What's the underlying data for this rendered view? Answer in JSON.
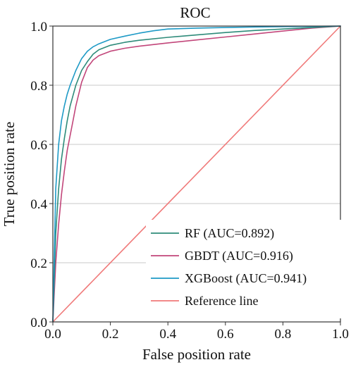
{
  "chart_data": {
    "type": "line",
    "title": "ROC",
    "xlabel": "False position rate",
    "ylabel": "True position rate",
    "xlim": [
      0.0,
      1.0
    ],
    "ylim": [
      0.0,
      1.0
    ],
    "xticks": [
      "0.0",
      "0.2",
      "0.4",
      "0.6",
      "0.8",
      "1.0"
    ],
    "yticks": [
      "0.0",
      "0.2",
      "0.4",
      "0.6",
      "0.8",
      "1.0"
    ],
    "grid": "horizontal",
    "legend_position": "bottom-right",
    "series": [
      {
        "name": "RF (AUC=0.892)",
        "color": "#2e8b7a",
        "x": [
          0.0,
          0.01,
          0.02,
          0.03,
          0.04,
          0.05,
          0.06,
          0.08,
          0.1,
          0.12,
          0.14,
          0.16,
          0.2,
          0.25,
          0.3,
          0.4,
          0.5,
          0.6,
          0.7,
          0.8,
          0.9,
          1.0
        ],
        "y": [
          0.0,
          0.3,
          0.45,
          0.55,
          0.62,
          0.68,
          0.73,
          0.8,
          0.85,
          0.88,
          0.905,
          0.92,
          0.935,
          0.945,
          0.952,
          0.962,
          0.97,
          0.978,
          0.985,
          0.99,
          0.995,
          1.0
        ]
      },
      {
        "name": "GBDT (AUC=0.916)",
        "color": "#c2467a",
        "x": [
          0.0,
          0.01,
          0.02,
          0.03,
          0.04,
          0.05,
          0.06,
          0.07,
          0.08,
          0.1,
          0.12,
          0.14,
          0.16,
          0.2,
          0.25,
          0.3,
          0.4,
          0.5,
          0.6,
          0.7,
          0.8,
          0.9,
          1.0
        ],
        "y": [
          0.0,
          0.2,
          0.33,
          0.43,
          0.51,
          0.58,
          0.63,
          0.68,
          0.73,
          0.81,
          0.86,
          0.885,
          0.9,
          0.915,
          0.925,
          0.932,
          0.943,
          0.953,
          0.963,
          0.973,
          0.983,
          0.993,
          1.0
        ]
      },
      {
        "name": "XGBoost (AUC=0.941)",
        "color": "#1e9ac6",
        "x": [
          0.0,
          0.01,
          0.02,
          0.03,
          0.04,
          0.05,
          0.06,
          0.08,
          0.1,
          0.12,
          0.14,
          0.16,
          0.2,
          0.25,
          0.3,
          0.35,
          0.4,
          0.5,
          0.6,
          0.7,
          0.8,
          0.9,
          1.0
        ],
        "y": [
          0.0,
          0.45,
          0.6,
          0.68,
          0.73,
          0.77,
          0.8,
          0.85,
          0.89,
          0.915,
          0.93,
          0.94,
          0.955,
          0.966,
          0.976,
          0.984,
          0.99,
          0.993,
          0.995,
          0.997,
          0.998,
          0.999,
          1.0
        ]
      },
      {
        "name": "Reference line",
        "color": "#f07a7a",
        "x": [
          0.0,
          1.0
        ],
        "y": [
          0.0,
          1.0
        ]
      }
    ]
  }
}
